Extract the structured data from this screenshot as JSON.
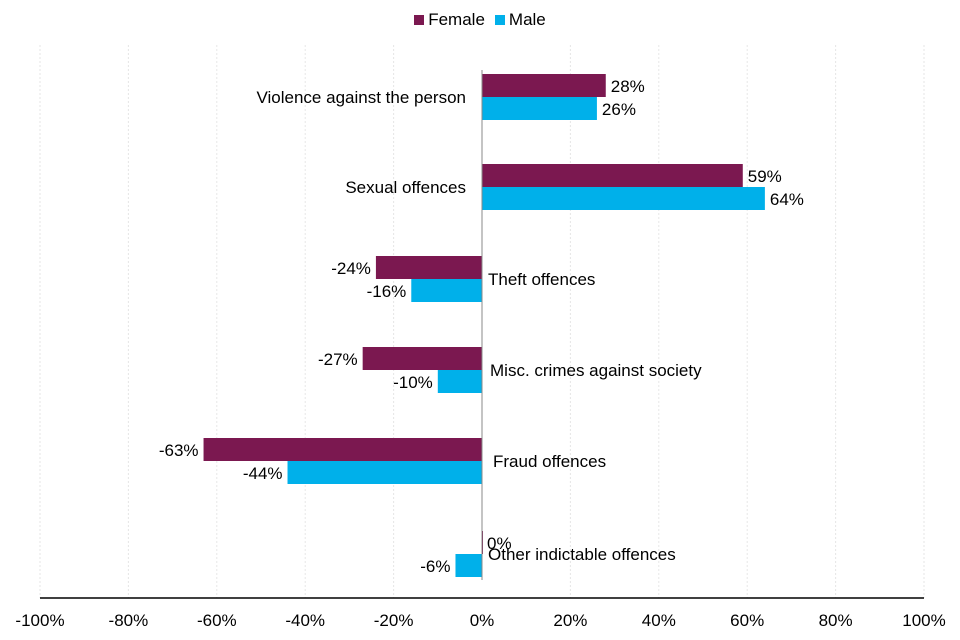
{
  "chart_data": {
    "type": "bar",
    "orientation": "horizontal",
    "title": "",
    "xlabel": "",
    "ylabel": "",
    "xlim": [
      -100,
      100
    ],
    "x_ticks": [
      -100,
      -80,
      -60,
      -40,
      -20,
      0,
      20,
      40,
      60,
      80,
      100
    ],
    "x_tick_labels": [
      "-100%",
      "-80%",
      "-60%",
      "-40%",
      "-20%",
      "0%",
      "20%",
      "40%",
      "60%",
      "80%",
      "100%"
    ],
    "grid": true,
    "legend_position": "top-center",
    "categories": [
      "Violence against the person",
      "Sexual offences",
      "Theft offences",
      "Misc. crimes against society",
      "Fraud offences",
      "Other indictable offences"
    ],
    "series": [
      {
        "name": "Female",
        "color": "#7B1850",
        "values": [
          28,
          59,
          -24,
          -27,
          -63,
          0
        ],
        "labels": [
          "28%",
          "59%",
          "-24%",
          "-27%",
          "-63%",
          "0%"
        ]
      },
      {
        "name": "Male",
        "color": "#00B0EA",
        "values": [
          26,
          64,
          -16,
          -10,
          -44,
          -6
        ],
        "labels": [
          "26%",
          "64%",
          "-16%",
          "-10%",
          "-44%",
          "-6%"
        ]
      }
    ]
  }
}
